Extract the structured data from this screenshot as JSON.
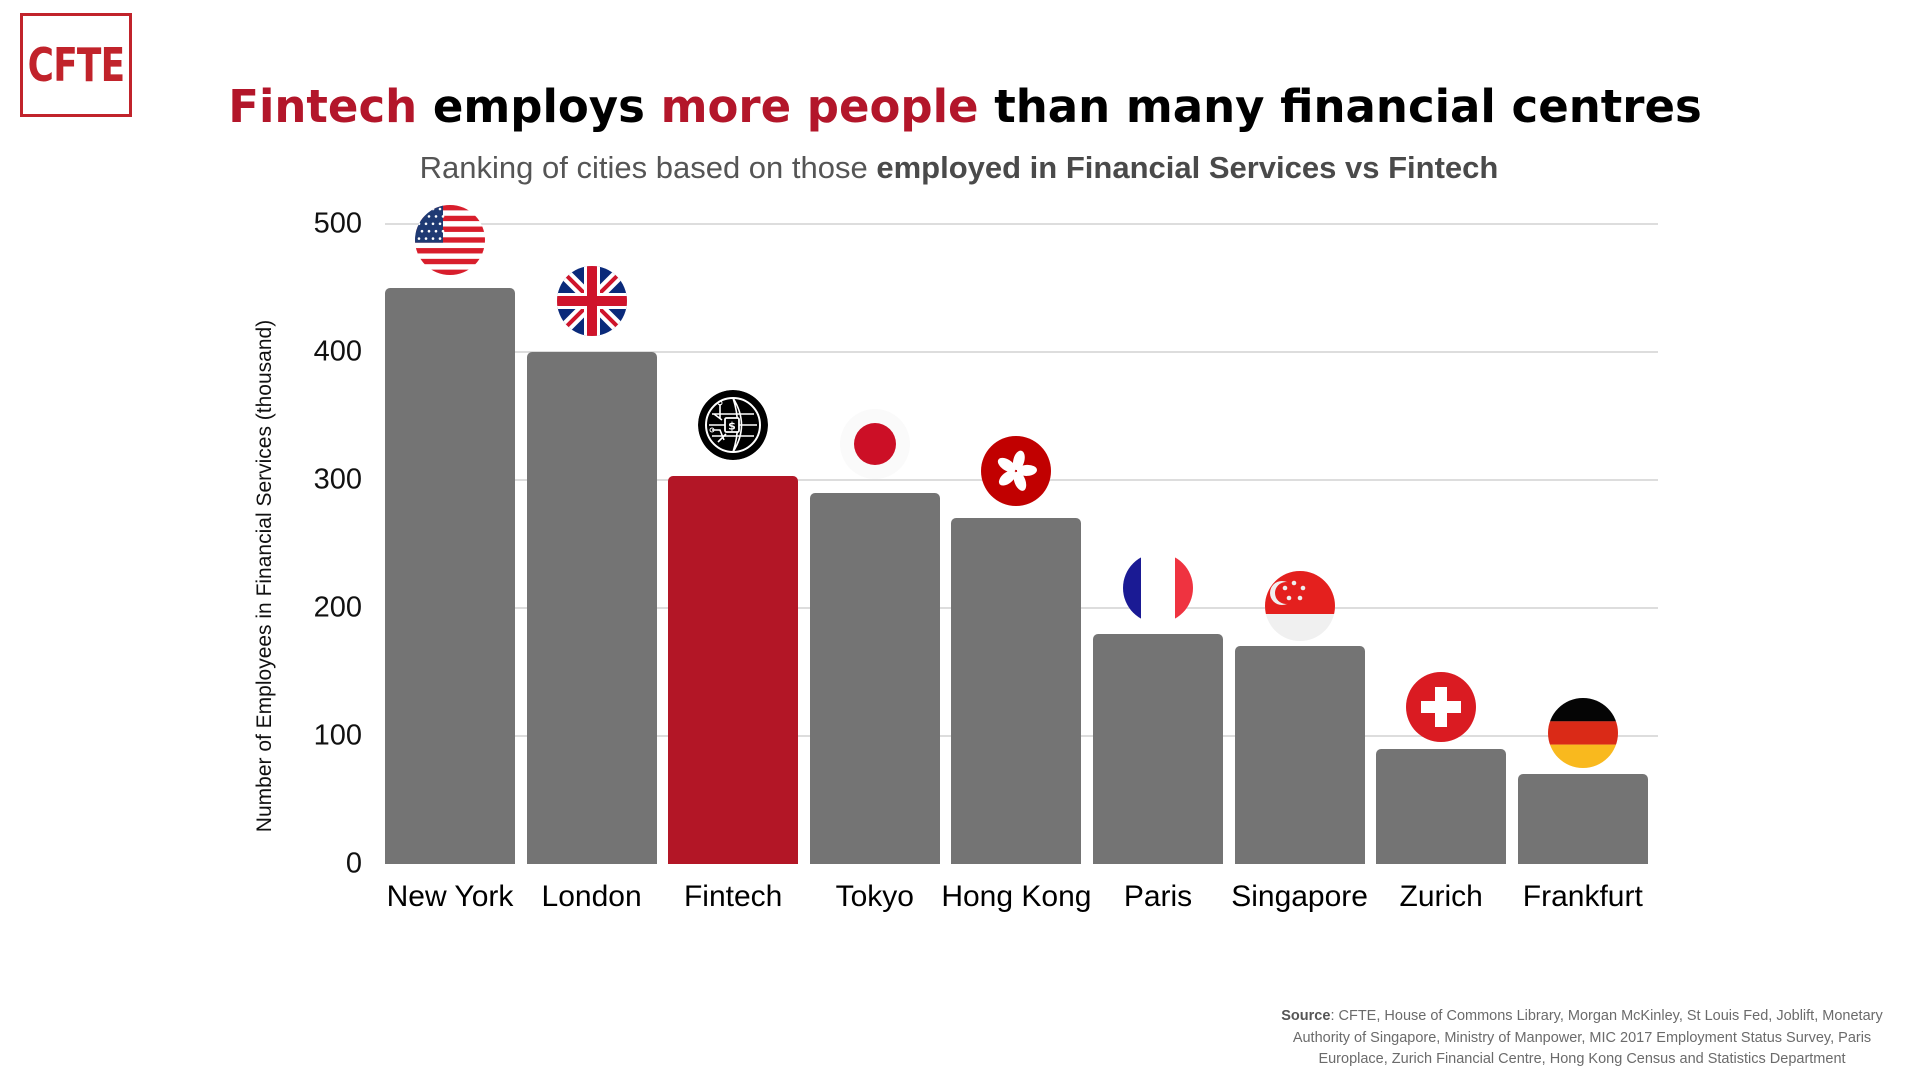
{
  "logo": {
    "text": "CFTE",
    "color": "#c1232b"
  },
  "title": {
    "part1": "Fintech",
    "part2": " employs ",
    "part3": "more people",
    "part4": " than many financial centres",
    "accent_color": "#b3162a"
  },
  "subtitle": {
    "part1": "Ranking of cities based on those ",
    "part2": "employed in Financial Services vs Fintech"
  },
  "source": {
    "label": "Source",
    "text": ": CFTE, House of Commons Library, Morgan McKinley, St Louis Fed, Joblift, Monetary Authority of Singapore, Ministry of Manpower, MIC 2017 Employment Status Survey, Paris Europlace, Zurich Financial Centre, Hong Kong Census and Statistics Department"
  },
  "colors": {
    "bar": "#747474",
    "highlight": "#b31626",
    "grid": "#dddddd"
  },
  "chart_data": {
    "type": "bar",
    "title": "Fintech employs more people than many financial centres",
    "subtitle": "Ranking of cities based on those employed in Financial Services vs Fintech",
    "xlabel": "",
    "ylabel": "Number of Employees in Financial Services (thousand)",
    "categories": [
      "New York",
      "London",
      "Fintech",
      "Tokyo",
      "Hong Kong",
      "Paris",
      "Singapore",
      "Zurich",
      "Frankfurt"
    ],
    "values": [
      450,
      400,
      303,
      290,
      270,
      180,
      170,
      90,
      70
    ],
    "highlight": "Fintech",
    "icons": [
      "us-flag",
      "uk-flag",
      "fintech-globe-chip",
      "japan-flag",
      "hong-kong-flag",
      "france-flag",
      "singapore-flag",
      "switzerland-flag",
      "germany-flag"
    ],
    "ylim": [
      0,
      500
    ],
    "yticks": [
      0,
      100,
      200,
      300,
      400,
      500
    ],
    "grid": true,
    "legend": "none"
  },
  "axis": {
    "yticks": [
      "0",
      "100",
      "200",
      "300",
      "400",
      "500"
    ]
  }
}
